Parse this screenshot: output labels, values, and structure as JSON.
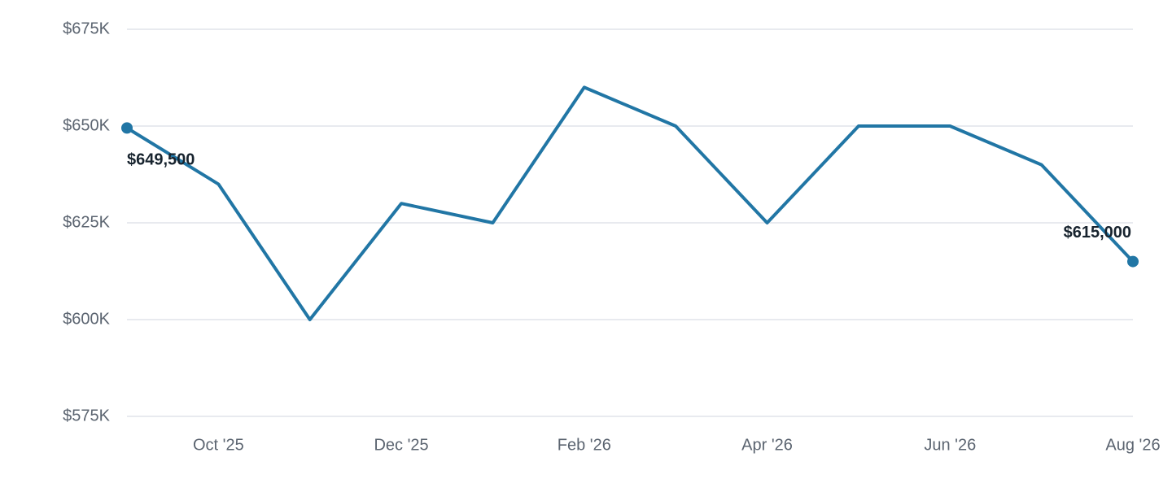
{
  "chart_data": {
    "type": "line",
    "categories": [
      null,
      "Oct '25",
      null,
      "Dec '25",
      null,
      "Feb '26",
      null,
      "Apr '26",
      null,
      "Jun '26",
      null,
      "Aug '26"
    ],
    "values": [
      649500,
      635000,
      600000,
      630000,
      625000,
      660000,
      650000,
      625000,
      650000,
      650000,
      640000,
      615000
    ],
    "value_labels": [
      "$649,500",
      null,
      null,
      null,
      null,
      null,
      null,
      null,
      null,
      null,
      null,
      "$615,000"
    ],
    "color": "#2176a5",
    "end_markers": true,
    "ylim": [
      575000,
      675000
    ],
    "yticks": [
      {
        "value": 575000,
        "label": "$575K"
      },
      {
        "value": 600000,
        "label": "$600K"
      },
      {
        "value": 625000,
        "label": "$625K"
      },
      {
        "value": 650000,
        "label": "$650K"
      },
      {
        "value": 675000,
        "label": "$675K"
      }
    ],
    "grid": true
  }
}
